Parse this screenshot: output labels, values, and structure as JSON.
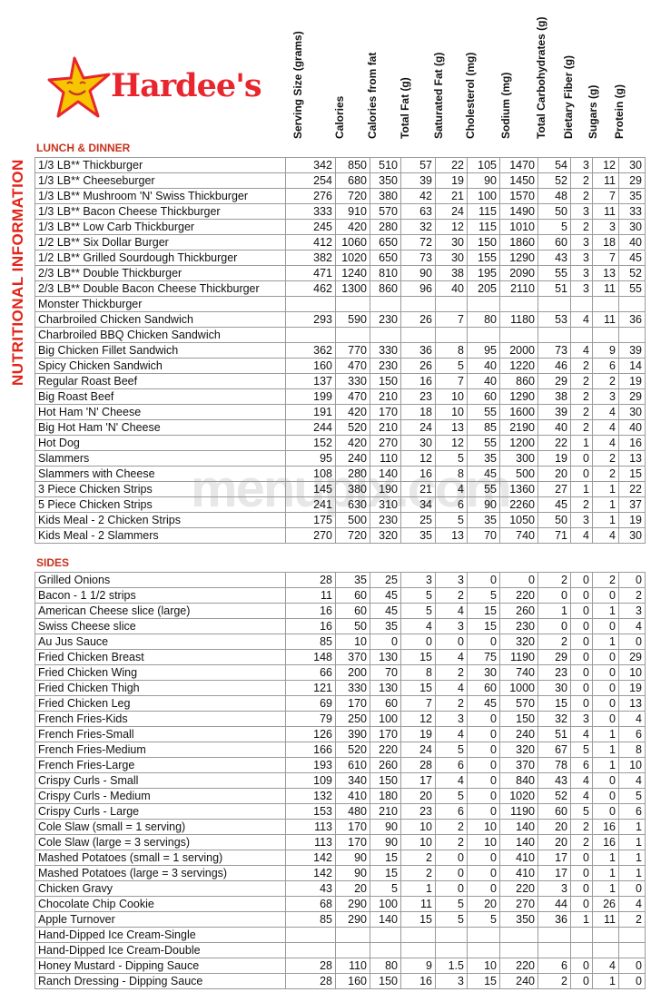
{
  "brand": {
    "name": "Hardee's",
    "star_color": "#f7c600",
    "text_color": "#e8262e"
  },
  "side_title": "NUTRITIONAL INFORMATION",
  "columns": [
    "Serving Size (grams)",
    "Calories",
    "Calories from fat",
    "Total Fat (g)",
    "Saturated Fat (g)",
    "Cholesterol (mg)",
    "Sodium (mg)",
    "Total Carbohydrates (g)",
    "Dietary Fiber (g)",
    "Sugars (g)",
    "Protein (g)"
  ],
  "watermark": "menupix.com",
  "sections": [
    {
      "title": "LUNCH & DINNER",
      "rows": [
        [
          "1/3 LB** Thickburger",
          "342",
          "850",
          "510",
          "57",
          "22",
          "105",
          "1470",
          "54",
          "3",
          "12",
          "30"
        ],
        [
          "1/3 LB** Cheeseburger",
          "254",
          "680",
          "350",
          "39",
          "19",
          "90",
          "1450",
          "52",
          "2",
          "11",
          "29"
        ],
        [
          "1/3 LB** Mushroom 'N' Swiss Thickburger",
          "276",
          "720",
          "380",
          "42",
          "21",
          "100",
          "1570",
          "48",
          "2",
          "7",
          "35"
        ],
        [
          "1/3 LB** Bacon Cheese Thickburger",
          "333",
          "910",
          "570",
          "63",
          "24",
          "115",
          "1490",
          "50",
          "3",
          "11",
          "33"
        ],
        [
          "1/3 LB** Low Carb Thickburger",
          "245",
          "420",
          "280",
          "32",
          "12",
          "115",
          "1010",
          "5",
          "2",
          "3",
          "30"
        ],
        [
          "1/2 LB** Six Dollar Burger",
          "412",
          "1060",
          "650",
          "72",
          "30",
          "150",
          "1860",
          "60",
          "3",
          "18",
          "40"
        ],
        [
          "1/2 LB** Grilled Sourdough Thickburger",
          "382",
          "1020",
          "650",
          "73",
          "30",
          "155",
          "1290",
          "43",
          "3",
          "7",
          "45"
        ],
        [
          "2/3 LB** Double Thickburger",
          "471",
          "1240",
          "810",
          "90",
          "38",
          "195",
          "2090",
          "55",
          "3",
          "13",
          "52"
        ],
        [
          "2/3 LB** Double Bacon Cheese Thickburger",
          "462",
          "1300",
          "860",
          "96",
          "40",
          "205",
          "2110",
          "51",
          "3",
          "11",
          "55"
        ],
        [
          "Monster Thickburger",
          "",
          "",
          "",
          "",
          "",
          "",
          "",
          "",
          "",
          "",
          ""
        ],
        [
          "Charbroiled Chicken Sandwich",
          "293",
          "590",
          "230",
          "26",
          "7",
          "80",
          "1180",
          "53",
          "4",
          "11",
          "36"
        ],
        [
          "Charbroiled BBQ Chicken Sandwich",
          "",
          "",
          "",
          "",
          "",
          "",
          "",
          "",
          "",
          "",
          ""
        ],
        [
          "Big Chicken Fillet Sandwich",
          "362",
          "770",
          "330",
          "36",
          "8",
          "95",
          "2000",
          "73",
          "4",
          "9",
          "39"
        ],
        [
          "Spicy Chicken Sandwich",
          "160",
          "470",
          "230",
          "26",
          "5",
          "40",
          "1220",
          "46",
          "2",
          "6",
          "14"
        ],
        [
          "Regular Roast Beef",
          "137",
          "330",
          "150",
          "16",
          "7",
          "40",
          "860",
          "29",
          "2",
          "2",
          "19"
        ],
        [
          "Big Roast Beef",
          "199",
          "470",
          "210",
          "23",
          "10",
          "60",
          "1290",
          "38",
          "2",
          "3",
          "29"
        ],
        [
          "Hot Ham 'N' Cheese",
          "191",
          "420",
          "170",
          "18",
          "10",
          "55",
          "1600",
          "39",
          "2",
          "4",
          "30"
        ],
        [
          "Big Hot Ham 'N' Cheese",
          "244",
          "520",
          "210",
          "24",
          "13",
          "85",
          "2190",
          "40",
          "2",
          "4",
          "40"
        ],
        [
          "Hot Dog",
          "152",
          "420",
          "270",
          "30",
          "12",
          "55",
          "1200",
          "22",
          "1",
          "4",
          "16"
        ],
        [
          "Slammers",
          "95",
          "240",
          "110",
          "12",
          "5",
          "35",
          "300",
          "19",
          "0",
          "2",
          "13"
        ],
        [
          "Slammers with Cheese",
          "108",
          "280",
          "140",
          "16",
          "8",
          "45",
          "500",
          "20",
          "0",
          "2",
          "15"
        ],
        [
          "3 Piece Chicken Strips",
          "145",
          "380",
          "190",
          "21",
          "4",
          "55",
          "1360",
          "27",
          "1",
          "1",
          "22"
        ],
        [
          "5 Piece Chicken Strips",
          "241",
          "630",
          "310",
          "34",
          "6",
          "90",
          "2260",
          "45",
          "2",
          "1",
          "37"
        ],
        [
          "Kids Meal - 2 Chicken Strips",
          "175",
          "500",
          "230",
          "25",
          "5",
          "35",
          "1050",
          "50",
          "3",
          "1",
          "19"
        ],
        [
          "Kids Meal - 2 Slammers",
          "270",
          "720",
          "320",
          "35",
          "13",
          "70",
          "740",
          "71",
          "4",
          "4",
          "30"
        ]
      ]
    },
    {
      "title": "SIDES",
      "rows": [
        [
          "Grilled Onions",
          "28",
          "35",
          "25",
          "3",
          "3",
          "0",
          "0",
          "2",
          "0",
          "2",
          "0"
        ],
        [
          "Bacon - 1 1/2 strips",
          "11",
          "60",
          "45",
          "5",
          "2",
          "5",
          "220",
          "0",
          "0",
          "0",
          "2"
        ],
        [
          "American Cheese slice (large)",
          "16",
          "60",
          "45",
          "5",
          "4",
          "15",
          "260",
          "1",
          "0",
          "1",
          "3"
        ],
        [
          "Swiss Cheese slice",
          "16",
          "50",
          "35",
          "4",
          "3",
          "15",
          "230",
          "0",
          "0",
          "0",
          "4"
        ],
        [
          "Au Jus Sauce",
          "85",
          "10",
          "0",
          "0",
          "0",
          "0",
          "320",
          "2",
          "0",
          "1",
          "0"
        ],
        [
          "Fried Chicken Breast",
          "148",
          "370",
          "130",
          "15",
          "4",
          "75",
          "1190",
          "29",
          "0",
          "0",
          "29"
        ],
        [
          "Fried Chicken Wing",
          "66",
          "200",
          "70",
          "8",
          "2",
          "30",
          "740",
          "23",
          "0",
          "0",
          "10"
        ],
        [
          "Fried Chicken Thigh",
          "121",
          "330",
          "130",
          "15",
          "4",
          "60",
          "1000",
          "30",
          "0",
          "0",
          "19"
        ],
        [
          "Fried Chicken Leg",
          "69",
          "170",
          "60",
          "7",
          "2",
          "45",
          "570",
          "15",
          "0",
          "0",
          "13"
        ],
        [
          "French Fries-Kids",
          "79",
          "250",
          "100",
          "12",
          "3",
          "0",
          "150",
          "32",
          "3",
          "0",
          "4"
        ],
        [
          "French Fries-Small",
          "126",
          "390",
          "170",
          "19",
          "4",
          "0",
          "240",
          "51",
          "4",
          "1",
          "6"
        ],
        [
          "French Fries-Medium",
          "166",
          "520",
          "220",
          "24",
          "5",
          "0",
          "320",
          "67",
          "5",
          "1",
          "8"
        ],
        [
          "French Fries-Large",
          "193",
          "610",
          "260",
          "28",
          "6",
          "0",
          "370",
          "78",
          "6",
          "1",
          "10"
        ],
        [
          "Crispy Curls - Small",
          "109",
          "340",
          "150",
          "17",
          "4",
          "0",
          "840",
          "43",
          "4",
          "0",
          "4"
        ],
        [
          "Crispy Curls - Medium",
          "132",
          "410",
          "180",
          "20",
          "5",
          "0",
          "1020",
          "52",
          "4",
          "0",
          "5"
        ],
        [
          "Crispy Curls - Large",
          "153",
          "480",
          "210",
          "23",
          "6",
          "0",
          "1190",
          "60",
          "5",
          "0",
          "6"
        ],
        [
          "Cole Slaw (small = 1 serving)",
          "113",
          "170",
          "90",
          "10",
          "2",
          "10",
          "140",
          "20",
          "2",
          "16",
          "1"
        ],
        [
          "Cole Slaw (large = 3 servings)",
          "113",
          "170",
          "90",
          "10",
          "2",
          "10",
          "140",
          "20",
          "2",
          "16",
          "1"
        ],
        [
          "Mashed Potatoes (small = 1 serving)",
          "142",
          "90",
          "15",
          "2",
          "0",
          "0",
          "410",
          "17",
          "0",
          "1",
          "1"
        ],
        [
          "Mashed Potatoes (large = 3 servings)",
          "142",
          "90",
          "15",
          "2",
          "0",
          "0",
          "410",
          "17",
          "0",
          "1",
          "1"
        ],
        [
          "Chicken Gravy",
          "43",
          "20",
          "5",
          "1",
          "0",
          "0",
          "220",
          "3",
          "0",
          "1",
          "0"
        ],
        [
          "Chocolate Chip Cookie",
          "68",
          "290",
          "100",
          "11",
          "5",
          "20",
          "270",
          "44",
          "0",
          "26",
          "4"
        ],
        [
          "Apple Turnover",
          "85",
          "290",
          "140",
          "15",
          "5",
          "5",
          "350",
          "36",
          "1",
          "11",
          "2"
        ],
        [
          "Hand-Dipped Ice Cream-Single",
          "",
          "",
          "",
          "",
          "",
          "",
          "",
          "",
          "",
          "",
          ""
        ],
        [
          "Hand-Dipped Ice Cream-Double",
          "",
          "",
          "",
          "",
          "",
          "",
          "",
          "",
          "",
          "",
          ""
        ],
        [
          "Honey Mustard - Dipping Sauce",
          "28",
          "110",
          "80",
          "9",
          "1.5",
          "10",
          "220",
          "6",
          "0",
          "4",
          "0"
        ],
        [
          "Ranch Dressing - Dipping Sauce",
          "28",
          "160",
          "150",
          "16",
          "3",
          "15",
          "240",
          "2",
          "0",
          "1",
          "0"
        ]
      ]
    }
  ]
}
